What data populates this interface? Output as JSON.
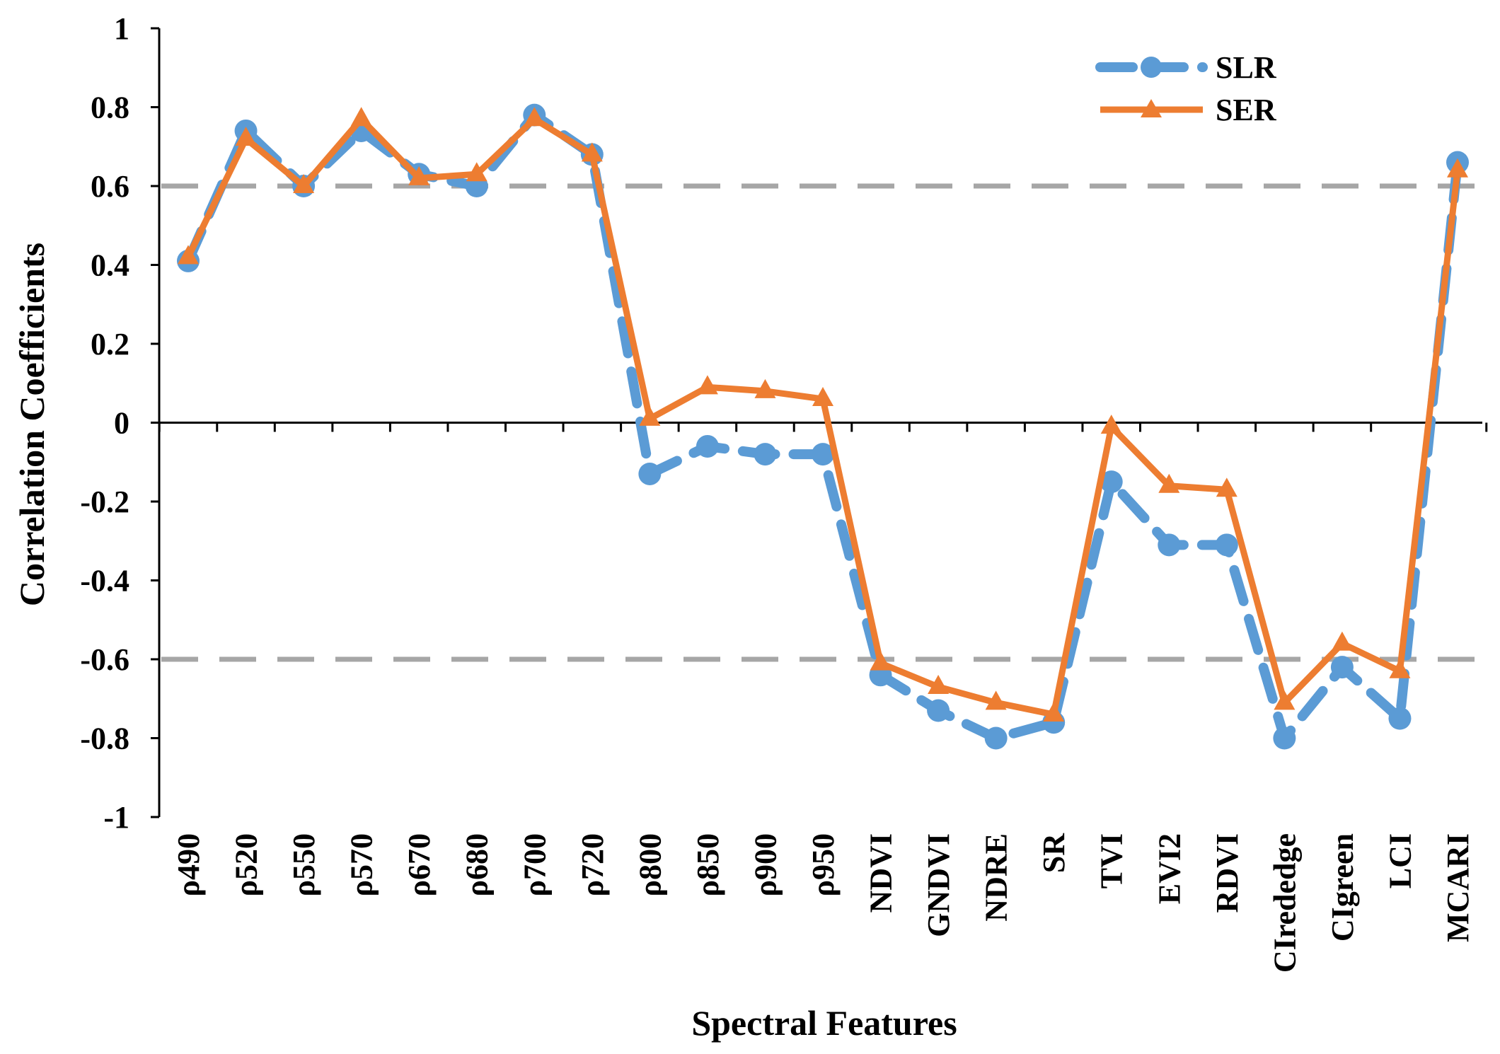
{
  "chart_data": {
    "type": "line",
    "title": "",
    "xlabel": "Spectral Features",
    "ylabel": "Correlation Coefficients",
    "ylim": [
      -1,
      1
    ],
    "yticks": [
      1,
      0.8,
      0.6,
      0.4,
      0.2,
      0,
      -0.2,
      -0.4,
      -0.6,
      -0.8,
      -1
    ],
    "ytick_labels": [
      "1",
      "0.8",
      "0.6",
      "0.4",
      "0.2",
      "0",
      "-0.2",
      "-0.4",
      "-0.6",
      "-0.8",
      "-1"
    ],
    "categories": [
      "ρ490",
      "ρ520",
      "ρ550",
      "ρ570",
      "ρ670",
      "ρ680",
      "ρ700",
      "ρ720",
      "ρ800",
      "ρ850",
      "ρ900",
      "ρ950",
      "NDVI",
      "GNDVI",
      "NDRE",
      "SR",
      "TVI",
      "EVI2",
      "RDVI",
      "CIrededge",
      "CIgreen",
      "LCI",
      "MCARI"
    ],
    "thresholds": [
      0.6,
      -0.6
    ],
    "legend_position": "top-right",
    "grid": false,
    "series": [
      {
        "name": "SLR",
        "color": "#5B9BD5",
        "marker": "circle",
        "line_style": "dashed",
        "values": [
          0.41,
          0.74,
          0.6,
          0.74,
          0.63,
          0.6,
          0.78,
          0.68,
          -0.13,
          -0.06,
          -0.08,
          -0.08,
          -0.64,
          -0.73,
          -0.8,
          -0.76,
          -0.15,
          -0.31,
          -0.31,
          -0.8,
          -0.62,
          -0.75,
          0.66
        ]
      },
      {
        "name": "SER",
        "color": "#ED7D31",
        "marker": "triangle",
        "line_style": "solid",
        "values": [
          0.42,
          0.72,
          0.6,
          0.77,
          0.62,
          0.63,
          0.77,
          0.68,
          0.01,
          0.09,
          0.08,
          0.06,
          -0.61,
          -0.67,
          -0.71,
          -0.74,
          -0.01,
          -0.16,
          -0.17,
          -0.71,
          -0.56,
          -0.63,
          0.64
        ]
      }
    ],
    "threshold_color": "#A6A6A6"
  }
}
